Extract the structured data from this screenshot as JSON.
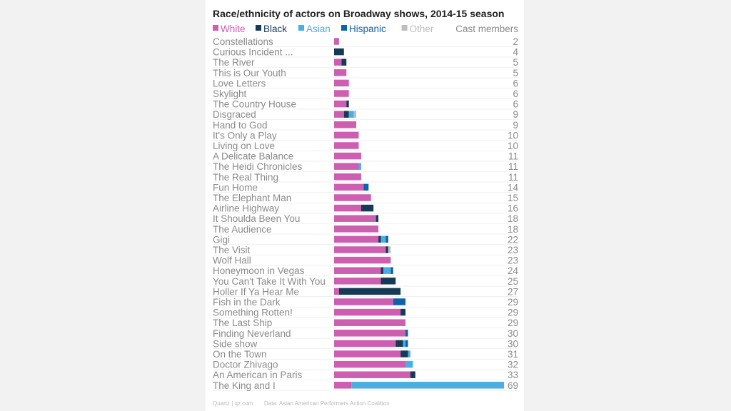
{
  "colors": {
    "White": "#cc5fb0",
    "Black": "#163a56",
    "Asian": "#4aaee2",
    "Hispanic": "#0d63a8",
    "Other": "#bdbdbd",
    "label": "#8a8a8a",
    "grid": "#e6e6e6"
  },
  "chart_data": {
    "type": "bar",
    "orientation": "horizontal",
    "stacked": true,
    "title": "Race/ethnicity of actors on Broadway shows, 2014-15 season",
    "totals_header": "Cast members",
    "legend_position": "top-left",
    "grid": true,
    "xlim": [
      0,
      69
    ],
    "series_names": [
      "White",
      "Black",
      "Asian",
      "Hispanic",
      "Other"
    ],
    "categories": [
      "Constellations",
      "Curious Incident ...",
      "The River",
      "This is Our Youth",
      "Love Letters",
      "Skylight",
      "The Country House",
      "Disgraced",
      "Hand to God",
      "It's Only a Play",
      "Living on Love",
      "A Delicate Balance",
      "The Heidi Chronicles",
      "The Real Thing",
      "Fun Home",
      "The Elephant Man",
      "Airline Highway",
      "It Shoulda Been You",
      "The Audience",
      "Gigi",
      "The Visit",
      "Wolf Hall",
      "Honeymoon in Vegas",
      "You Can't Take It With You",
      "Holler If Ya Hear Me",
      "Fish in the Dark",
      "Something Rotten!",
      "The Last Ship",
      "Finding Neverland",
      "Side show",
      "On the Town",
      "Doctor Zhivago",
      "An American in Paris",
      "The King and I"
    ],
    "totals": [
      2,
      4,
      5,
      5,
      6,
      6,
      6,
      9,
      9,
      10,
      10,
      11,
      11,
      11,
      14,
      15,
      16,
      18,
      18,
      22,
      23,
      23,
      24,
      25,
      27,
      29,
      29,
      29,
      30,
      30,
      31,
      32,
      33,
      69
    ],
    "series": [
      {
        "name": "White",
        "values": [
          2,
          0,
          3,
          5,
          6,
          6,
          5,
          4,
          9,
          10,
          10,
          11,
          10,
          11,
          12,
          15,
          11,
          17,
          18,
          18,
          21,
          23,
          19,
          19,
          2,
          24,
          27,
          29,
          29,
          25,
          27,
          29,
          31,
          7
        ]
      },
      {
        "name": "Black",
        "values": [
          0,
          4,
          2,
          0,
          0,
          0,
          1,
          2,
          0,
          0,
          0,
          0,
          0,
          0,
          0,
          0,
          5,
          1,
          0,
          1,
          1,
          0,
          1,
          6,
          25,
          0,
          2,
          0,
          0,
          3,
          3,
          0,
          2,
          0
        ]
      },
      {
        "name": "Asian",
        "values": [
          0,
          0,
          0,
          0,
          0,
          0,
          0,
          2,
          0,
          0,
          0,
          0,
          1,
          0,
          0,
          0,
          0,
          0,
          0,
          2,
          0,
          0,
          3,
          0,
          0,
          0,
          0,
          0,
          0,
          1,
          1,
          3,
          0,
          62
        ]
      },
      {
        "name": "Hispanic",
        "values": [
          0,
          0,
          0,
          0,
          0,
          0,
          0,
          0,
          0,
          0,
          0,
          0,
          0,
          0,
          2,
          0,
          0,
          0,
          0,
          1,
          0,
          0,
          1,
          0,
          0,
          5,
          0,
          0,
          1,
          1,
          0,
          0,
          0,
          0
        ]
      },
      {
        "name": "Other",
        "values": [
          0,
          0,
          0,
          0,
          0,
          0,
          0,
          1,
          0,
          0,
          0,
          0,
          0,
          0,
          0,
          0,
          0,
          0,
          0,
          0,
          1,
          0,
          0,
          0,
          0,
          0,
          0,
          0,
          0,
          0,
          0,
          0,
          0,
          0
        ]
      }
    ],
    "footer_source": "Quartz | qz.com",
    "footer_data": "Data: Asian American Performers Action Coalition"
  }
}
